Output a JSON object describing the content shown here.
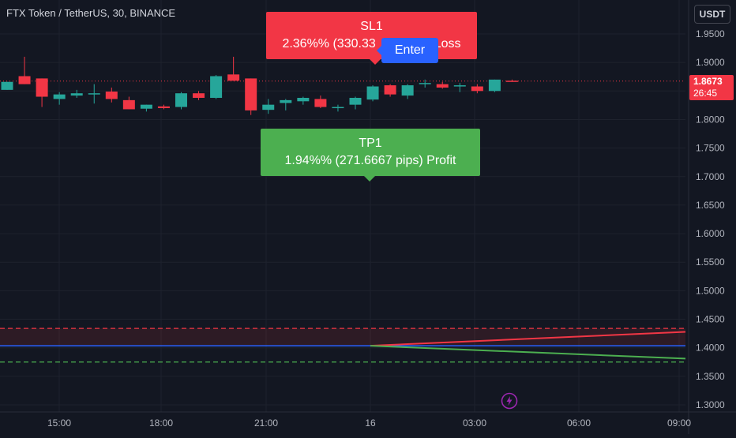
{
  "header": {
    "symbol_title": "FTX Token / TetherUS, 30, BINANCE",
    "currency": "USDT"
  },
  "price_scale": {
    "current_price": "1.8673",
    "countdown": "26:45"
  },
  "annotations": {
    "sl_title": "SL1",
    "sl_detail": "2.36%% (330.33",
    "sl_suffix": "Loss",
    "enter_label": "Enter",
    "tp_title": "TP1",
    "tp_detail": "1.94%% (271.6667 pips) Profit"
  },
  "bottom_icon": "lightning-bolt-icon",
  "colors": {
    "background": "#131722",
    "bull": "#26a69a",
    "bear": "#f23645",
    "entry_line": "#2962ff",
    "take_profit": "#4caf50",
    "stop_loss": "#f23645"
  },
  "chart_data": {
    "type": "candlestick",
    "y_ticks": [
      "1.9500",
      "1.9000",
      "1.8500",
      "1.8000",
      "1.7500",
      "1.7000",
      "1.6500",
      "1.6000",
      "1.5500",
      "1.5000",
      "1.4500",
      "1.4000",
      "1.3500",
      "1.3000"
    ],
    "ylim": [
      1.3,
      1.95
    ],
    "x_ticks": [
      "15:00",
      "18:00",
      "21:00",
      "16",
      "03:00",
      "06:00",
      "09:00"
    ],
    "candles": [
      {
        "o": 1.852,
        "h": 1.866,
        "l": 1.852,
        "c": 1.866
      },
      {
        "o": 1.876,
        "h": 1.91,
        "l": 1.862,
        "c": 1.862
      },
      {
        "o": 1.872,
        "h": 1.872,
        "l": 1.822,
        "c": 1.84
      },
      {
        "o": 1.836,
        "h": 1.848,
        "l": 1.826,
        "c": 1.844
      },
      {
        "o": 1.842,
        "h": 1.852,
        "l": 1.838,
        "c": 1.846
      },
      {
        "o": 1.844,
        "h": 1.862,
        "l": 1.828,
        "c": 1.846
      },
      {
        "o": 1.849,
        "h": 1.856,
        "l": 1.83,
        "c": 1.836
      },
      {
        "o": 1.834,
        "h": 1.84,
        "l": 1.818,
        "c": 1.818
      },
      {
        "o": 1.819,
        "h": 1.826,
        "l": 1.814,
        "c": 1.826
      },
      {
        "o": 1.823,
        "h": 1.826,
        "l": 1.818,
        "c": 1.82
      },
      {
        "o": 1.822,
        "h": 1.848,
        "l": 1.818,
        "c": 1.846
      },
      {
        "o": 1.846,
        "h": 1.85,
        "l": 1.834,
        "c": 1.838
      },
      {
        "o": 1.838,
        "h": 1.878,
        "l": 1.836,
        "c": 1.876
      },
      {
        "o": 1.879,
        "h": 1.91,
        "l": 1.868,
        "c": 1.868
      },
      {
        "o": 1.872,
        "h": 1.872,
        "l": 1.808,
        "c": 1.816
      },
      {
        "o": 1.817,
        "h": 1.836,
        "l": 1.81,
        "c": 1.826
      },
      {
        "o": 1.829,
        "h": 1.836,
        "l": 1.816,
        "c": 1.834
      },
      {
        "o": 1.832,
        "h": 1.84,
        "l": 1.826,
        "c": 1.838
      },
      {
        "o": 1.836,
        "h": 1.842,
        "l": 1.82,
        "c": 1.822
      },
      {
        "o": 1.82,
        "h": 1.826,
        "l": 1.814,
        "c": 1.822
      },
      {
        "o": 1.826,
        "h": 1.84,
        "l": 1.818,
        "c": 1.838
      },
      {
        "o": 1.835,
        "h": 1.86,
        "l": 1.832,
        "c": 1.858
      },
      {
        "o": 1.86,
        "h": 1.862,
        "l": 1.84,
        "c": 1.844
      },
      {
        "o": 1.842,
        "h": 1.862,
        "l": 1.836,
        "c": 1.86
      },
      {
        "o": 1.862,
        "h": 1.87,
        "l": 1.856,
        "c": 1.864
      },
      {
        "o": 1.862,
        "h": 1.866,
        "l": 1.854,
        "c": 1.856
      },
      {
        "o": 1.858,
        "h": 1.864,
        "l": 1.848,
        "c": 1.86
      },
      {
        "o": 1.858,
        "h": 1.862,
        "l": 1.846,
        "c": 1.85
      },
      {
        "o": 1.85,
        "h": 1.87,
        "l": 1.848,
        "c": 1.87
      },
      {
        "o": 1.868,
        "h": 1.87,
        "l": 1.866,
        "c": 1.867
      }
    ],
    "last_price": 1.8673,
    "entry_level": 1.4035,
    "stop_loss_level": 1.434,
    "take_profit_level": 1.375,
    "sl_line_end": 1.428,
    "tp_line_end": 1.381
  }
}
